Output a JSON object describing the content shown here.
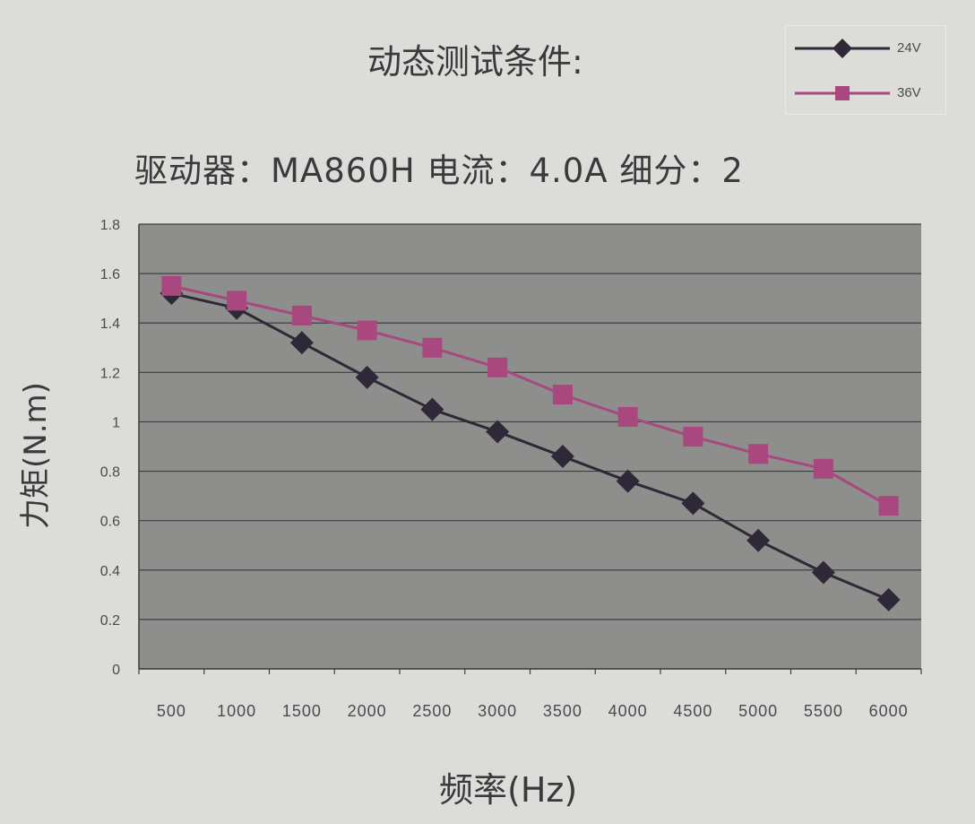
{
  "chart_data": {
    "type": "line",
    "title": "动态测试条件:",
    "subtitle": "驱动器：MA860H 电流：4.0A   细分：2",
    "xlabel": "频率(Hz)",
    "ylabel": "力矩(N.m)",
    "categories": [
      "500",
      "1000",
      "1500",
      "2000",
      "2500",
      "3000",
      "3500",
      "4000",
      "4500",
      "5000",
      "5500",
      "6000"
    ],
    "y_ticks": [
      "0",
      "0.2",
      "0.4",
      "0.6",
      "0.8",
      "1",
      "1.2",
      "1.4",
      "1.6",
      "1.8"
    ],
    "ylim": [
      0,
      1.8
    ],
    "grid": true,
    "legend_position": "top-right",
    "series": [
      {
        "name": "24V",
        "marker": "diamond",
        "color": "#2e2838",
        "values": [
          1.52,
          1.46,
          1.32,
          1.18,
          1.05,
          0.96,
          0.86,
          0.76,
          0.67,
          0.52,
          0.39,
          0.28
        ]
      },
      {
        "name": "36V",
        "marker": "square",
        "color": "#a8487e",
        "values": [
          1.55,
          1.49,
          1.43,
          1.37,
          1.3,
          1.22,
          1.11,
          1.02,
          0.94,
          0.87,
          0.81,
          0.66
        ]
      }
    ],
    "colors": {
      "plot_background": "#8e8e8c",
      "gridline": "#3e3e40",
      "page_background": "#dcdcd8"
    }
  }
}
